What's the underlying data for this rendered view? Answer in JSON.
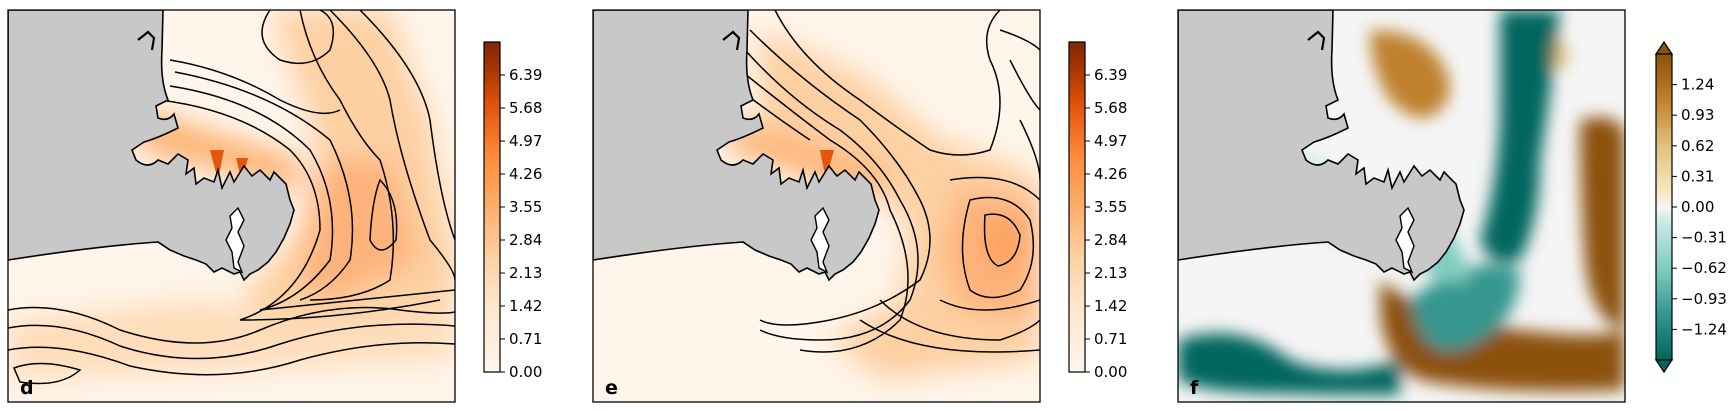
{
  "figure": {
    "panels": [
      {
        "label": "d",
        "colormap": "Oranges",
        "colorbar_ticks": [
          "0.00",
          "0.71",
          "1.42",
          "2.13",
          "2.84",
          "3.55",
          "4.26",
          "4.97",
          "5.68",
          "6.39"
        ],
        "colorbar_range": [
          0.0,
          7.1
        ],
        "contours": true
      },
      {
        "label": "e",
        "colormap": "Oranges",
        "colorbar_ticks": [
          "0.00",
          "0.71",
          "1.42",
          "2.13",
          "2.84",
          "3.55",
          "4.26",
          "4.97",
          "5.68",
          "6.39"
        ],
        "colorbar_range": [
          0.0,
          7.1
        ],
        "contours": true
      },
      {
        "label": "f",
        "colormap": "BrBG",
        "colorbar_ticks": [
          "−1.24",
          "−0.93",
          "−0.62",
          "−0.31",
          "0.00",
          "0.31",
          "0.62",
          "0.93",
          "1.24"
        ],
        "colorbar_range": [
          -1.55,
          1.55
        ],
        "colorbar_extend": "both",
        "contours": false
      }
    ],
    "colors": {
      "land": "#c8c8c8",
      "sea_low": "#fff5eb",
      "sea_mid": "#fdbe85",
      "sea_high": "#e6550d",
      "div_pos": "#8c510a",
      "div_neg": "#01665e",
      "div_zero": "#f5f5f5"
    }
  },
  "chart_data": [
    {
      "type": "heatmap",
      "title": "",
      "panel_label": "d",
      "xlabel": "",
      "ylabel": "",
      "colorbar": {
        "min": 0.0,
        "max": 7.1,
        "ticks": [
          0.0,
          0.71,
          1.42,
          2.13,
          2.84,
          3.55,
          4.26,
          4.97,
          5.68,
          6.39
        ]
      },
      "grid": false,
      "legend": "none"
    },
    {
      "type": "heatmap",
      "title": "",
      "panel_label": "e",
      "xlabel": "",
      "ylabel": "",
      "colorbar": {
        "min": 0.0,
        "max": 7.1,
        "ticks": [
          0.0,
          0.71,
          1.42,
          2.13,
          2.84,
          3.55,
          4.26,
          4.97,
          5.68,
          6.39
        ]
      },
      "grid": false,
      "legend": "none"
    },
    {
      "type": "heatmap",
      "title": "",
      "panel_label": "f",
      "xlabel": "",
      "ylabel": "",
      "colorbar": {
        "min": -1.55,
        "max": 1.55,
        "extend": "both",
        "ticks": [
          -1.24,
          -0.93,
          -0.62,
          -0.31,
          0.0,
          0.31,
          0.62,
          0.93,
          1.24
        ]
      },
      "grid": false,
      "legend": "none"
    }
  ]
}
